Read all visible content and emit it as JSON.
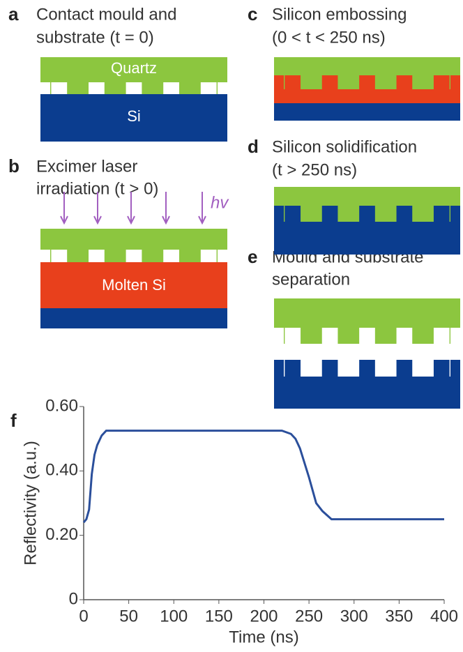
{
  "panels": [
    {
      "letter": "a",
      "lines": [
        "Contact mould and",
        "substrate (t = 0)"
      ],
      "labels": [
        "Quartz",
        "Si"
      ]
    },
    {
      "letter": "b",
      "lines": [
        "Excimer laser",
        "irradiation (t > 0)"
      ],
      "labels": [
        "hv",
        "Molten Si"
      ]
    },
    {
      "letter": "c",
      "lines": [
        "Silicon embossing",
        "(0 < t < 250 ns)"
      ]
    },
    {
      "letter": "d",
      "lines": [
        "Silicon solidification",
        "(t > 250 ns)"
      ]
    },
    {
      "letter": "e",
      "lines": [
        "Mould and substrate",
        "separation"
      ]
    }
  ],
  "chart_letter": "f",
  "chart_data": {
    "type": "line",
    "x_label": "Time (ns)",
    "y_label": "Reflectivity (a.u.)",
    "x": [
      0,
      3,
      6,
      9,
      12,
      15,
      20,
      25,
      30,
      100,
      220,
      230,
      235,
      240,
      250,
      258,
      265,
      275,
      300,
      400
    ],
    "values": [
      0.24,
      0.25,
      0.28,
      0.39,
      0.45,
      0.48,
      0.51,
      0.525,
      0.525,
      0.525,
      0.525,
      0.515,
      0.5,
      0.47,
      0.38,
      0.3,
      0.275,
      0.25,
      0.25,
      0.25
    ],
    "color": "#2b4f9b",
    "xlim": [
      0,
      400
    ],
    "ylim": [
      0,
      0.6
    ],
    "xticks": [
      0,
      50,
      100,
      150,
      200,
      250,
      300,
      350,
      400
    ],
    "yticks": [
      0,
      {
        "value": 0.2,
        "label": "0.20"
      },
      {
        "value": 0.4,
        "label": "0.40"
      },
      {
        "value": 0.6,
        "label": "0.60"
      }
    ]
  }
}
